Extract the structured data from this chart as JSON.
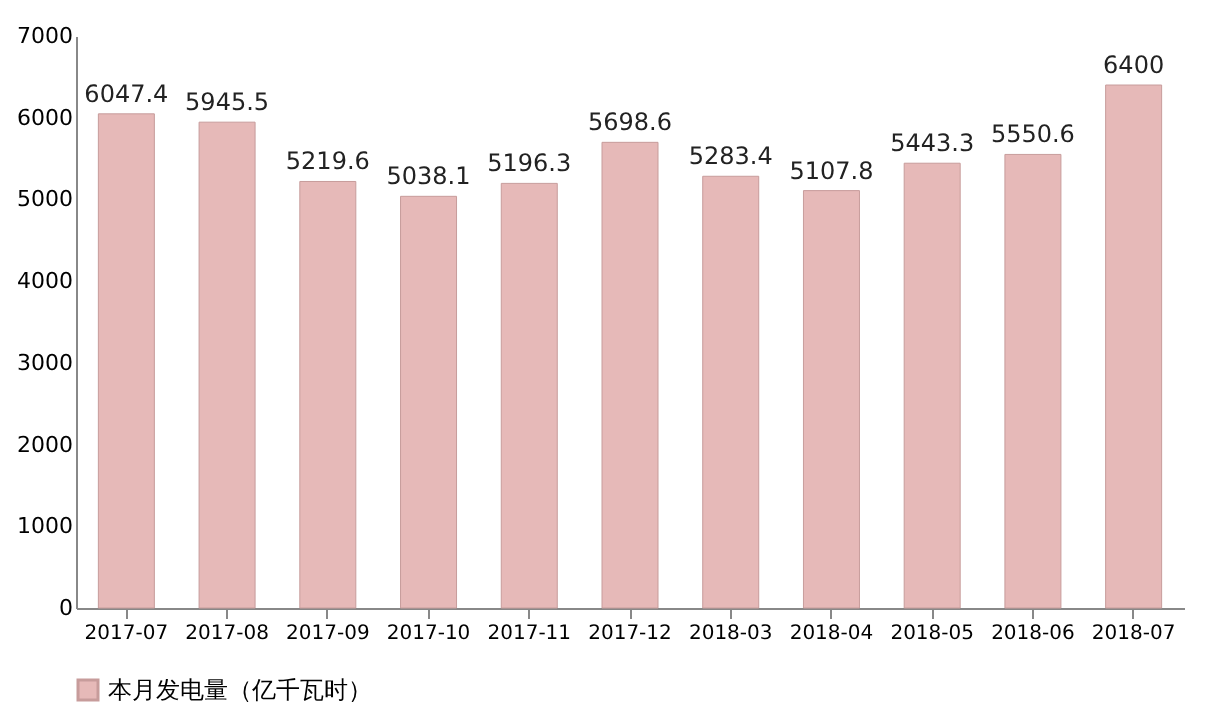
{
  "chart_data": {
    "type": "bar",
    "categories": [
      "2017-07",
      "2017-08",
      "2017-09",
      "2017-10",
      "2017-11",
      "2017-12",
      "2018-03",
      "2018-04",
      "2018-05",
      "2018-06",
      "2018-07"
    ],
    "series": [
      {
        "name": "本月发电量（亿千瓦时）",
        "color": "#e6b9b8",
        "values": [
          6047.4,
          5945.5,
          5219.6,
          5038.1,
          5196.3,
          5698.6,
          5283.4,
          5107.8,
          5443.3,
          5550.6,
          6400
        ]
      }
    ],
    "ylim": [
      0,
      7000
    ],
    "yticks": [
      0,
      1000,
      2000,
      3000,
      4000,
      5000,
      6000,
      7000
    ],
    "data_labels": true,
    "legend": "bottom",
    "grid": false
  }
}
